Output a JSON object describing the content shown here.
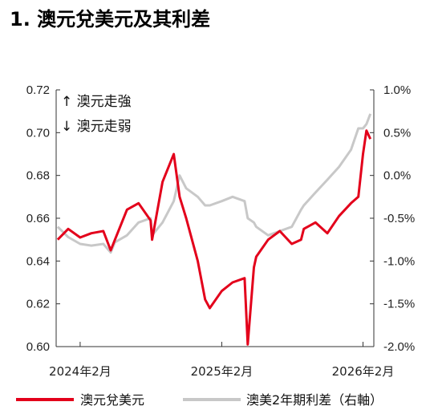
{
  "chart_data": {
    "type": "line",
    "title": "1. 澳元兌美元及其利差",
    "xlabel": "",
    "ylabel": "",
    "x_ticks": [
      "2024年2月",
      "2025年2月",
      "2026年2月"
    ],
    "x": [
      "2023-12-05",
      "2024-01-01",
      "2024-02-01",
      "2024-03-01",
      "2024-04-01",
      "2024-04-20",
      "2024-05-01",
      "2024-06-01",
      "2024-07-01",
      "2024-08-01",
      "2024-08-05",
      "2024-09-01",
      "2024-09-30",
      "2024-10-15",
      "2024-11-01",
      "2024-12-01",
      "2024-12-20",
      "2025-01-01",
      "2025-02-01",
      "2025-03-01",
      "2025-04-01",
      "2025-04-09",
      "2025-04-25",
      "2025-05-01",
      "2025-06-01",
      "2025-07-01",
      "2025-08-01",
      "2025-08-25",
      "2025-09-01",
      "2025-10-01",
      "2025-11-01",
      "2025-12-01",
      "2026-01-01",
      "2026-01-20",
      "2026-02-01",
      "2026-02-10",
      "2026-02-20"
    ],
    "series": [
      {
        "name": "澳元兌美元",
        "axis": "left",
        "color": "#e3001b",
        "values": [
          0.65,
          0.655,
          0.651,
          0.653,
          0.654,
          0.645,
          0.65,
          0.664,
          0.667,
          0.659,
          0.65,
          0.677,
          0.69,
          0.67,
          0.66,
          0.64,
          0.622,
          0.618,
          0.626,
          0.63,
          0.632,
          0.601,
          0.637,
          0.642,
          0.65,
          0.654,
          0.648,
          0.65,
          0.655,
          0.658,
          0.653,
          0.661,
          0.667,
          0.67,
          0.69,
          0.701,
          0.697
        ]
      },
      {
        "name": "澳美2年期利差（右軸）",
        "axis": "right",
        "color": "#c8c8c8",
        "values": [
          -0.6,
          -0.72,
          -0.8,
          -0.82,
          -0.8,
          -0.9,
          -0.78,
          -0.7,
          -0.55,
          -0.5,
          -0.7,
          -0.55,
          -0.3,
          0.0,
          -0.15,
          -0.25,
          -0.35,
          -0.35,
          -0.3,
          -0.25,
          -0.3,
          -0.5,
          -0.55,
          -0.6,
          -0.7,
          -0.65,
          -0.6,
          -0.4,
          -0.35,
          -0.2,
          -0.05,
          0.1,
          0.3,
          0.55,
          0.55,
          0.6,
          0.72
        ]
      }
    ],
    "y_left": {
      "lim": [
        0.6,
        0.72
      ],
      "ticks": [
        "0.60",
        "0.62",
        "0.64",
        "0.66",
        "0.68",
        "0.70",
        "0.72"
      ],
      "tick_values": [
        0.6,
        0.62,
        0.64,
        0.66,
        0.68,
        0.7,
        0.72
      ]
    },
    "y_right": {
      "lim": [
        -2.0,
        1.0
      ],
      "ticks": [
        "-2.0%",
        "-1.5%",
        "-1.0%",
        "-0.5%",
        "0.0%",
        "0.5%",
        "1.0%"
      ],
      "tick_values": [
        -2.0,
        -1.5,
        -1.0,
        -0.5,
        0.0,
        0.5,
        1.0
      ]
    },
    "annotations": [
      "↑ 澳元走強",
      "↓ 澳元走弱"
    ],
    "legend_position": "bottom",
    "grid": false
  }
}
